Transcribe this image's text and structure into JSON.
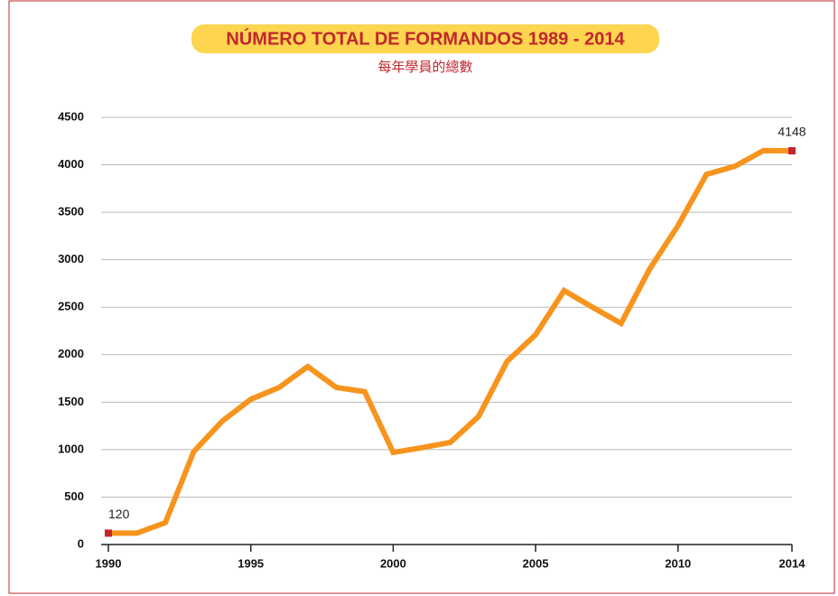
{
  "chart_data": {
    "type": "line",
    "title": "NÚMERO TOTAL DE FORMANDOS 1989 - 2014",
    "subtitle": "每年學員的總數",
    "x": [
      1990,
      1991,
      1992,
      1993,
      1994,
      1995,
      1996,
      1997,
      1998,
      1999,
      2000,
      2001,
      2002,
      2003,
      2004,
      2005,
      2006,
      2007,
      2008,
      2009,
      2010,
      2011,
      2012,
      2013,
      2014
    ],
    "series": [
      {
        "name": null,
        "color": "#f7941d",
        "marker_color": "#c1272d",
        "values": [
          120,
          120,
          230,
          980,
          1300,
          1530,
          1655,
          1875,
          1655,
          1610,
          970,
          1020,
          1075,
          1350,
          1930,
          2210,
          2675,
          2500,
          2330,
          2900,
          3360,
          3900,
          3985,
          4150,
          4148
        ],
        "value_labels": [
          "120",
          null,
          null,
          null,
          null,
          null,
          null,
          null,
          null,
          null,
          null,
          null,
          null,
          null,
          null,
          null,
          null,
          null,
          null,
          null,
          null,
          null,
          null,
          null,
          "4148"
        ]
      }
    ],
    "xlim": [
      1990,
      2014
    ],
    "xticks": [
      1990,
      1995,
      2000,
      2005,
      2010,
      2014
    ],
    "ylim": [
      0,
      4500
    ],
    "yticks": [
      0,
      500,
      1000,
      1500,
      2000,
      2500,
      3000,
      3500,
      4000,
      4500
    ],
    "grid": true
  }
}
